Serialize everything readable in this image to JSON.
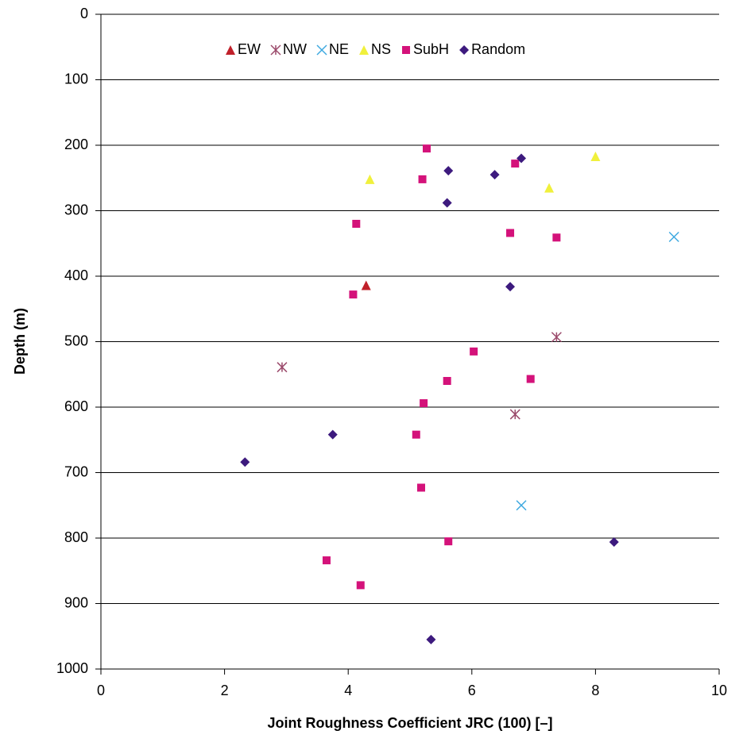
{
  "chart_data": {
    "type": "scatter",
    "x_label": "Joint Roughness Coefficient JRC (100) [–]",
    "y_label": "Depth (m)",
    "xlim": [
      0,
      10
    ],
    "xticks": [
      0,
      2,
      4,
      6,
      8,
      10
    ],
    "ylim": [
      1000,
      0
    ],
    "yticks": [
      0,
      100,
      200,
      300,
      400,
      500,
      600,
      700,
      800,
      900,
      1000
    ],
    "grid": true,
    "legend": "top",
    "series": [
      {
        "name": "EW",
        "color": "#c0202a",
        "marker": "triangle",
        "x": [
          4.29
        ],
        "values": [
          414
        ]
      },
      {
        "name": "NW",
        "color": "#9b4a6b",
        "marker": "asterisk",
        "x": [
          7.37,
          2.93,
          6.7
        ],
        "values": [
          493,
          539,
          611
        ]
      },
      {
        "name": "NE",
        "color": "#3fa9e0",
        "marker": "x",
        "x": [
          9.27,
          6.8
        ],
        "values": [
          340,
          750
        ]
      },
      {
        "name": "NS",
        "color": "#f0f03c",
        "marker": "triangle",
        "x": [
          8.0,
          4.35,
          7.25
        ],
        "values": [
          217,
          252,
          265
        ]
      },
      {
        "name": "SubH",
        "color": "#d4127a",
        "marker": "square",
        "x": [
          5.27,
          6.7,
          5.2,
          4.13,
          6.62,
          7.37,
          4.08,
          6.03,
          5.6,
          6.95,
          5.22,
          5.1,
          5.18,
          5.62,
          3.65,
          4.2
        ],
        "values": [
          205,
          228,
          252,
          320,
          334,
          341,
          428,
          515,
          560,
          557,
          594,
          642,
          723,
          805,
          834,
          872
        ]
      },
      {
        "name": "Random",
        "color": "#3d1a7e",
        "marker": "diamond",
        "x": [
          6.8,
          5.62,
          6.37,
          5.6,
          6.62,
          3.75,
          2.33,
          8.3,
          5.34
        ],
        "values": [
          220,
          239,
          245,
          288,
          416,
          642,
          684,
          806,
          955
        ]
      }
    ]
  }
}
